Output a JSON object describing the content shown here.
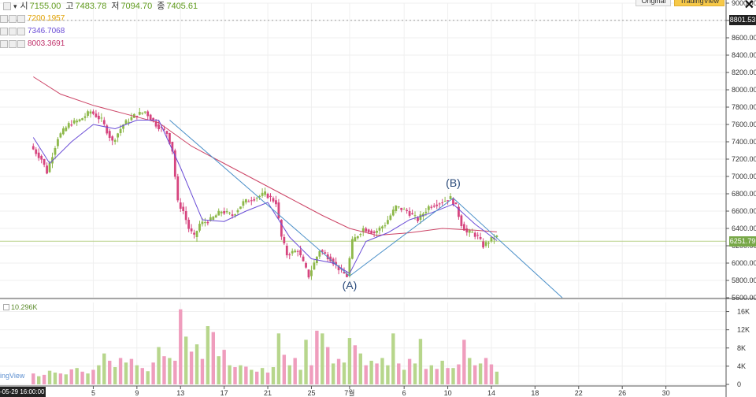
{
  "header": {
    "ohlc": [
      {
        "label": "시",
        "value": "7155.00"
      },
      {
        "label": "고",
        "value": "7483.78"
      },
      {
        "label": "저",
        "value": "7094.70"
      },
      {
        "label": "종",
        "value": "7405.61"
      }
    ],
    "ma_values": [
      {
        "value": "7200.1957",
        "color": "#e0a000"
      },
      {
        "value": "7346.7068",
        "color": "#6a4cd6"
      },
      {
        "value": "8003.3691",
        "color": "#c0306a"
      }
    ],
    "top_buttons": [
      "Original",
      "TradingView"
    ],
    "close_symbol": "✕"
  },
  "price_badges": [
    {
      "value": "8801.53",
      "bg": "#222222",
      "color": "#ffffff"
    },
    {
      "value": "6251.79",
      "bg": "#78a848",
      "color": "#ffffff"
    }
  ],
  "volume_label": "10.296K",
  "watermark": "ingView",
  "date_badge": "-05-29 16:00:00",
  "colors": {
    "up": "#8db84a",
    "down": "#d6457f",
    "ma_short": "#6a4cd6",
    "ma_long": "#cc4466",
    "trend": "#4a8fc8",
    "hline": "#b9d28a",
    "vol_up": "#b7d68c",
    "vol_down": "#ef9dbd"
  },
  "chart_data": {
    "type": "candlestick",
    "price_ylim": [
      5600,
      9000
    ],
    "y_ticks": [
      5600,
      5800,
      6000,
      6200,
      6400,
      6600,
      6800,
      7000,
      7200,
      7400,
      7600,
      7800,
      8000,
      8200,
      8400,
      8600,
      8800,
      9000
    ],
    "volume_ylim": [
      0,
      18000
    ],
    "volume_ticks": [
      {
        "value": 0,
        "label": "0"
      },
      {
        "value": 4000,
        "label": "4K"
      },
      {
        "value": 8000,
        "label": "8K"
      },
      {
        "value": 12000,
        "label": "12K"
      },
      {
        "value": 16000,
        "label": "16K"
      }
    ],
    "x_range_days": [
      0,
      51
    ],
    "x_ticks": [
      {
        "day": 5,
        "label": "5"
      },
      {
        "day": 9,
        "label": "9"
      },
      {
        "day": 13,
        "label": "13"
      },
      {
        "day": 17,
        "label": "17"
      },
      {
        "day": 21,
        "label": "21"
      },
      {
        "day": 25,
        "label": "25"
      },
      {
        "day": 28.5,
        "label": "7월"
      },
      {
        "day": 33.5,
        "label": "6"
      },
      {
        "day": 37.5,
        "label": "10"
      },
      {
        "day": 41.5,
        "label": "14"
      },
      {
        "day": 45.5,
        "label": "18"
      },
      {
        "day": 49.5,
        "label": "22"
      },
      {
        "day": 53.5,
        "label": "26"
      },
      {
        "day": 57.5,
        "label": "30"
      }
    ],
    "price_path": [
      [
        -0.5,
        7350
      ],
      [
        0.5,
        7200
      ],
      [
        1,
        7050
      ],
      [
        2,
        7450
      ],
      [
        3,
        7600
      ],
      [
        4,
        7650
      ],
      [
        5,
        7750
      ],
      [
        6,
        7650
      ],
      [
        7,
        7400
      ],
      [
        8,
        7600
      ],
      [
        9,
        7700
      ],
      [
        10,
        7750
      ],
      [
        11,
        7600
      ],
      [
        12,
        7500
      ],
      [
        12.5,
        7300
      ],
      [
        13,
        6700
      ],
      [
        13.5,
        6600
      ],
      [
        14,
        6400
      ],
      [
        14.5,
        6300
      ],
      [
        15,
        6450
      ],
      [
        16,
        6500
      ],
      [
        17,
        6600
      ],
      [
        18,
        6550
      ],
      [
        19,
        6700
      ],
      [
        20,
        6750
      ],
      [
        21,
        6800
      ],
      [
        22,
        6700
      ],
      [
        22.5,
        6300
      ],
      [
        23,
        6100
      ],
      [
        24,
        6150
      ],
      [
        25,
        5850
      ],
      [
        26,
        6150
      ],
      [
        27,
        6050
      ],
      [
        28,
        5900
      ],
      [
        28.5,
        5850
      ],
      [
        29,
        6250
      ],
      [
        30,
        6400
      ],
      [
        31,
        6350
      ],
      [
        32,
        6450
      ],
      [
        33,
        6650
      ],
      [
        34,
        6600
      ],
      [
        35,
        6500
      ],
      [
        36,
        6650
      ],
      [
        37,
        6700
      ],
      [
        38,
        6750
      ],
      [
        38.5,
        6650
      ],
      [
        39,
        6450
      ],
      [
        39.5,
        6350
      ],
      [
        40,
        6350
      ],
      [
        40.5,
        6300
      ],
      [
        41,
        6200
      ],
      [
        41.5,
        6250
      ],
      [
        42,
        6300
      ]
    ],
    "ma_short_path": [
      [
        -0.5,
        7450
      ],
      [
        1,
        7150
      ],
      [
        3,
        7400
      ],
      [
        5,
        7600
      ],
      [
        7,
        7550
      ],
      [
        9,
        7650
      ],
      [
        11,
        7650
      ],
      [
        13,
        7100
      ],
      [
        15,
        6500
      ],
      [
        17,
        6480
      ],
      [
        19,
        6600
      ],
      [
        21,
        6700
      ],
      [
        23,
        6300
      ],
      [
        25,
        6050
      ],
      [
        27,
        6000
      ],
      [
        28.5,
        5880
      ],
      [
        30,
        6250
      ],
      [
        32,
        6350
      ],
      [
        34,
        6500
      ],
      [
        36,
        6580
      ],
      [
        38,
        6680
      ],
      [
        40,
        6450
      ],
      [
        42,
        6260
      ]
    ],
    "ma_long_path": [
      [
        -0.5,
        8150
      ],
      [
        2,
        7950
      ],
      [
        5,
        7820
      ],
      [
        8,
        7720
      ],
      [
        11,
        7620
      ],
      [
        14,
        7350
      ],
      [
        17,
        7150
      ],
      [
        20,
        6950
      ],
      [
        23,
        6750
      ],
      [
        26,
        6550
      ],
      [
        28.5,
        6400
      ],
      [
        31,
        6320
      ],
      [
        34,
        6350
      ],
      [
        37,
        6400
      ],
      [
        40,
        6380
      ],
      [
        42,
        6360
      ]
    ],
    "trend_lines": [
      [
        [
          12,
          7650
        ],
        [
          28.5,
          5850
        ]
      ],
      [
        [
          28.5,
          5850
        ],
        [
          38,
          6750
        ]
      ],
      [
        [
          38,
          6750
        ],
        [
          48,
          5600
        ]
      ]
    ],
    "current_price": 6251.79,
    "annotations": [
      {
        "text": "(B)",
        "x": 38,
        "y": 6880
      },
      {
        "text": "(A)",
        "x": 28.5,
        "y": 5700
      }
    ],
    "volume": [
      {
        "d": -0.5,
        "v": 2400,
        "up": false
      },
      {
        "d": 0,
        "v": 1800,
        "up": true
      },
      {
        "d": 0.5,
        "v": 2100,
        "up": false
      },
      {
        "d": 1,
        "v": 3000,
        "up": true
      },
      {
        "d": 1.5,
        "v": 2600,
        "up": true
      },
      {
        "d": 2,
        "v": 2400,
        "up": false
      },
      {
        "d": 2.5,
        "v": 2200,
        "up": true
      },
      {
        "d": 3,
        "v": 3300,
        "up": false
      },
      {
        "d": 3.5,
        "v": 3600,
        "up": true
      },
      {
        "d": 4,
        "v": 2800,
        "up": false
      },
      {
        "d": 4.5,
        "v": 2400,
        "up": true
      },
      {
        "d": 5,
        "v": 3200,
        "up": false
      },
      {
        "d": 5.5,
        "v": 4200,
        "up": true
      },
      {
        "d": 6,
        "v": 6800,
        "up": true
      },
      {
        "d": 6.5,
        "v": 5200,
        "up": false
      },
      {
        "d": 7,
        "v": 3800,
        "up": true
      },
      {
        "d": 7.5,
        "v": 5800,
        "up": false
      },
      {
        "d": 8,
        "v": 4800,
        "up": true
      },
      {
        "d": 8.5,
        "v": 5600,
        "up": false
      },
      {
        "d": 9,
        "v": 4200,
        "up": true
      },
      {
        "d": 9.5,
        "v": 3600,
        "up": false
      },
      {
        "d": 10,
        "v": 2900,
        "up": true
      },
      {
        "d": 10.5,
        "v": 4800,
        "up": false
      },
      {
        "d": 11,
        "v": 8200,
        "up": true
      },
      {
        "d": 11.5,
        "v": 6200,
        "up": false
      },
      {
        "d": 12,
        "v": 5800,
        "up": true
      },
      {
        "d": 12.5,
        "v": 5200,
        "up": false
      },
      {
        "d": 13,
        "v": 16500,
        "up": false
      },
      {
        "d": 13.5,
        "v": 10500,
        "up": true
      },
      {
        "d": 14,
        "v": 7200,
        "up": false
      },
      {
        "d": 14.5,
        "v": 8800,
        "up": true
      },
      {
        "d": 15,
        "v": 5600,
        "up": false
      },
      {
        "d": 15.5,
        "v": 12800,
        "up": true
      },
      {
        "d": 16,
        "v": 11500,
        "up": false
      },
      {
        "d": 16.5,
        "v": 6200,
        "up": true
      },
      {
        "d": 17,
        "v": 7600,
        "up": false
      },
      {
        "d": 17.5,
        "v": 4200,
        "up": true
      },
      {
        "d": 18,
        "v": 3800,
        "up": false
      },
      {
        "d": 18.5,
        "v": 4200,
        "up": true
      },
      {
        "d": 19,
        "v": 3900,
        "up": false
      },
      {
        "d": 19.5,
        "v": 3200,
        "up": true
      },
      {
        "d": 20,
        "v": 2800,
        "up": false
      },
      {
        "d": 20.5,
        "v": 3600,
        "up": true
      },
      {
        "d": 21,
        "v": 2600,
        "up": false
      },
      {
        "d": 21.5,
        "v": 3800,
        "up": true
      },
      {
        "d": 22,
        "v": 11200,
        "up": true
      },
      {
        "d": 22.5,
        "v": 6500,
        "up": false
      },
      {
        "d": 23,
        "v": 4200,
        "up": true
      },
      {
        "d": 23.5,
        "v": 5800,
        "up": false
      },
      {
        "d": 24,
        "v": 3200,
        "up": true
      },
      {
        "d": 24.5,
        "v": 9800,
        "up": true
      },
      {
        "d": 25,
        "v": 4200,
        "up": false
      },
      {
        "d": 25.5,
        "v": 11800,
        "up": false
      },
      {
        "d": 26,
        "v": 11200,
        "up": true
      },
      {
        "d": 26.5,
        "v": 8200,
        "up": false
      },
      {
        "d": 27,
        "v": 4600,
        "up": true
      },
      {
        "d": 27.5,
        "v": 5600,
        "up": false
      },
      {
        "d": 28,
        "v": 4800,
        "up": true
      },
      {
        "d": 28.5,
        "v": 10200,
        "up": true
      },
      {
        "d": 29,
        "v": 8600,
        "up": false
      },
      {
        "d": 29.5,
        "v": 6800,
        "up": true
      },
      {
        "d": 30,
        "v": 4200,
        "up": false
      },
      {
        "d": 30.5,
        "v": 5200,
        "up": true
      },
      {
        "d": 31,
        "v": 4600,
        "up": false
      },
      {
        "d": 31.5,
        "v": 5800,
        "up": true
      },
      {
        "d": 32,
        "v": 4200,
        "up": true
      },
      {
        "d": 32.5,
        "v": 11200,
        "up": true
      },
      {
        "d": 33,
        "v": 4600,
        "up": false
      },
      {
        "d": 33.5,
        "v": 3200,
        "up": true
      },
      {
        "d": 34,
        "v": 5600,
        "up": false
      },
      {
        "d": 34.5,
        "v": 4600,
        "up": true
      },
      {
        "d": 35,
        "v": 10000,
        "up": true
      },
      {
        "d": 35.5,
        "v": 3400,
        "up": false
      },
      {
        "d": 36,
        "v": 4200,
        "up": true
      },
      {
        "d": 36.5,
        "v": 3400,
        "up": false
      },
      {
        "d": 37,
        "v": 5200,
        "up": true
      },
      {
        "d": 37.5,
        "v": 3600,
        "up": false
      },
      {
        "d": 38,
        "v": 3600,
        "up": true
      },
      {
        "d": 38.5,
        "v": 4400,
        "up": false
      },
      {
        "d": 39,
        "v": 9800,
        "up": false
      },
      {
        "d": 39.5,
        "v": 5800,
        "up": true
      },
      {
        "d": 40,
        "v": 4200,
        "up": false
      },
      {
        "d": 40.5,
        "v": 4600,
        "up": true
      },
      {
        "d": 41,
        "v": 5800,
        "up": false
      },
      {
        "d": 41.5,
        "v": 4400,
        "up": false
      },
      {
        "d": 42,
        "v": 2800,
        "up": true
      }
    ]
  }
}
